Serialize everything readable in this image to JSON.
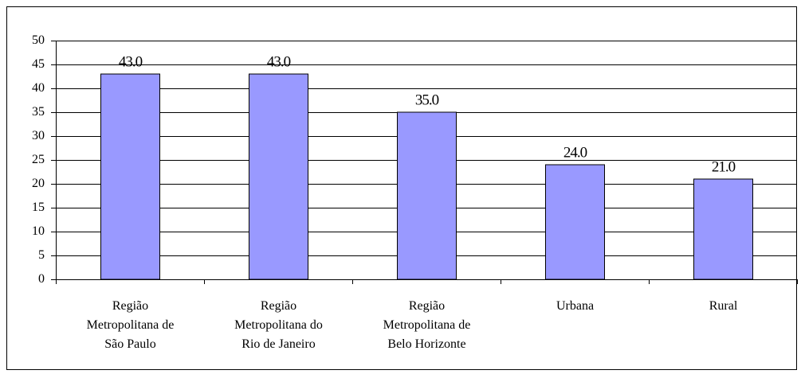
{
  "chart_data": {
    "type": "bar",
    "categories": [
      "Região Metropolitana de São Paulo",
      "Região Metropolitana do Rio de Janeiro",
      "Região Metropolitana de Belo Horizonte",
      "Urbana",
      "Rural"
    ],
    "values": [
      43,
      43,
      35,
      24,
      21
    ],
    "value_labels": [
      "43.0",
      "43.0",
      "35.0",
      "24.0",
      "21.0"
    ],
    "color": "#9999ff",
    "ylim": [
      0,
      50
    ],
    "yticks": [
      0,
      5,
      10,
      15,
      20,
      25,
      30,
      35,
      40,
      45,
      50
    ],
    "grid": true
  }
}
